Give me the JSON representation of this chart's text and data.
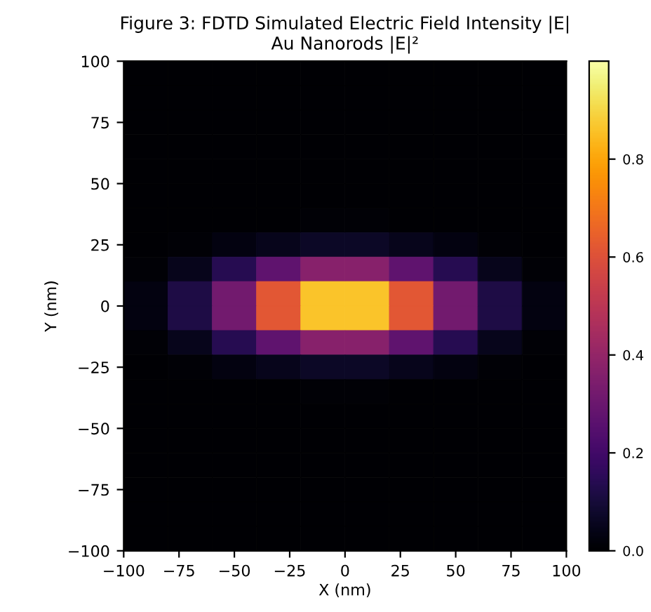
{
  "chart_data": {
    "type": "heatmap",
    "title": "Figure 3: FDTD Simulated Electric Field Intensity |E|\nAu Nanorods |E|²",
    "xlabel": "X (nm)",
    "ylabel": "Y (nm)",
    "x": [
      -90,
      -70,
      -50,
      -30,
      -10,
      10,
      30,
      50,
      70,
      90
    ],
    "y": [
      95,
      85,
      75,
      65,
      55,
      45,
      35,
      25,
      15,
      5,
      -5,
      -15,
      -25,
      -35,
      -45,
      -55,
      -65,
      -75,
      -85,
      -95
    ],
    "cells": [
      [
        0,
        0,
        0,
        0,
        0,
        0,
        0,
        0,
        0,
        0
      ],
      [
        0,
        0,
        0,
        0,
        0,
        0,
        0,
        0,
        0,
        0
      ],
      [
        0,
        0,
        0,
        0,
        0,
        0,
        0,
        0,
        0,
        0
      ],
      [
        0,
        0,
        0,
        0,
        0,
        0,
        0,
        0,
        0,
        0
      ],
      [
        0,
        0,
        0,
        0,
        0,
        0,
        0,
        0,
        0,
        0
      ],
      [
        0,
        0,
        0,
        0,
        0,
        0,
        0,
        0,
        0,
        0
      ],
      [
        0,
        0,
        0,
        0,
        0.01,
        0.01,
        0,
        0,
        0,
        0
      ],
      [
        0,
        0.01,
        0.03,
        0.05,
        0.07,
        0.07,
        0.05,
        0.03,
        0.01,
        0
      ],
      [
        0.01,
        0.05,
        0.14,
        0.27,
        0.37,
        0.37,
        0.27,
        0.14,
        0.05,
        0.01
      ],
      [
        0.03,
        0.12,
        0.32,
        0.62,
        0.86,
        0.86,
        0.62,
        0.32,
        0.12,
        0.03
      ],
      [
        0.03,
        0.12,
        0.32,
        0.62,
        0.86,
        0.86,
        0.62,
        0.32,
        0.12,
        0.03
      ],
      [
        0.01,
        0.05,
        0.14,
        0.27,
        0.37,
        0.37,
        0.27,
        0.14,
        0.05,
        0.01
      ],
      [
        0,
        0.01,
        0.03,
        0.05,
        0.07,
        0.07,
        0.05,
        0.03,
        0.01,
        0
      ],
      [
        0,
        0,
        0,
        0,
        0.01,
        0.01,
        0,
        0,
        0,
        0
      ],
      [
        0,
        0,
        0,
        0,
        0,
        0,
        0,
        0,
        0,
        0
      ],
      [
        0,
        0,
        0,
        0,
        0,
        0,
        0,
        0,
        0,
        0
      ],
      [
        0,
        0,
        0,
        0,
        0,
        0,
        0,
        0,
        0,
        0
      ],
      [
        0,
        0,
        0,
        0,
        0,
        0,
        0,
        0,
        0,
        0
      ],
      [
        0,
        0,
        0,
        0,
        0,
        0,
        0,
        0,
        0,
        0
      ],
      [
        0,
        0,
        0,
        0,
        0,
        0,
        0,
        0,
        0,
        0
      ]
    ],
    "xlim": [
      -100,
      100
    ],
    "ylim": [
      -100,
      100
    ],
    "xticks": [
      {
        "value": -100,
        "label": "−100"
      },
      {
        "value": -75,
        "label": "−75"
      },
      {
        "value": -50,
        "label": "−50"
      },
      {
        "value": -25,
        "label": "−25"
      },
      0,
      25,
      50,
      75,
      100
    ],
    "yticks": [
      {
        "value": -100,
        "label": "−100"
      },
      {
        "value": -75,
        "label": "−75"
      },
      {
        "value": -50,
        "label": "−50"
      },
      {
        "value": -25,
        "label": "−25"
      },
      0,
      25,
      50,
      75,
      100
    ],
    "clim": [
      0,
      1
    ],
    "cticks": [
      {
        "value": 0,
        "label": "0.0"
      },
      {
        "value": 0.2,
        "label": "0.2"
      },
      {
        "value": 0.4,
        "label": "0.4"
      },
      {
        "value": 0.6,
        "label": "0.6"
      },
      {
        "value": 0.8,
        "label": "0.8"
      }
    ]
  }
}
